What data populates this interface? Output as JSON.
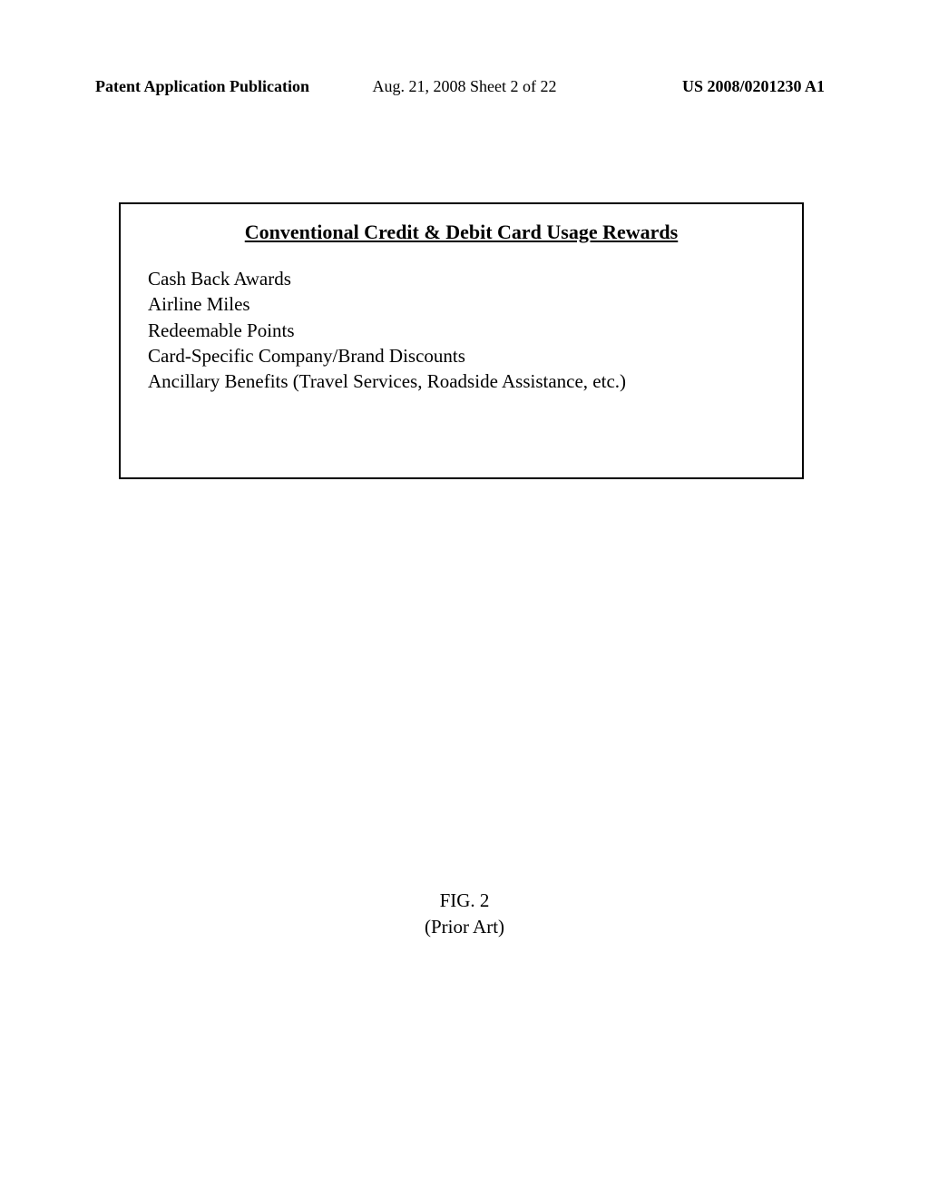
{
  "header": {
    "left": "Patent Application Publication",
    "center": "Aug. 21, 2008  Sheet 2 of 22",
    "right": "US 2008/0201230 A1"
  },
  "box": {
    "title": "Conventional Credit & Debit Card Usage Rewards",
    "items": [
      "Cash Back Awards",
      "Airline Miles",
      "Redeemable Points",
      "Card-Specific Company/Brand Discounts",
      "Ancillary Benefits (Travel Services, Roadside Assistance, etc.)"
    ]
  },
  "figure": {
    "number": "FIG. 2",
    "subtitle": "(Prior Art)"
  }
}
